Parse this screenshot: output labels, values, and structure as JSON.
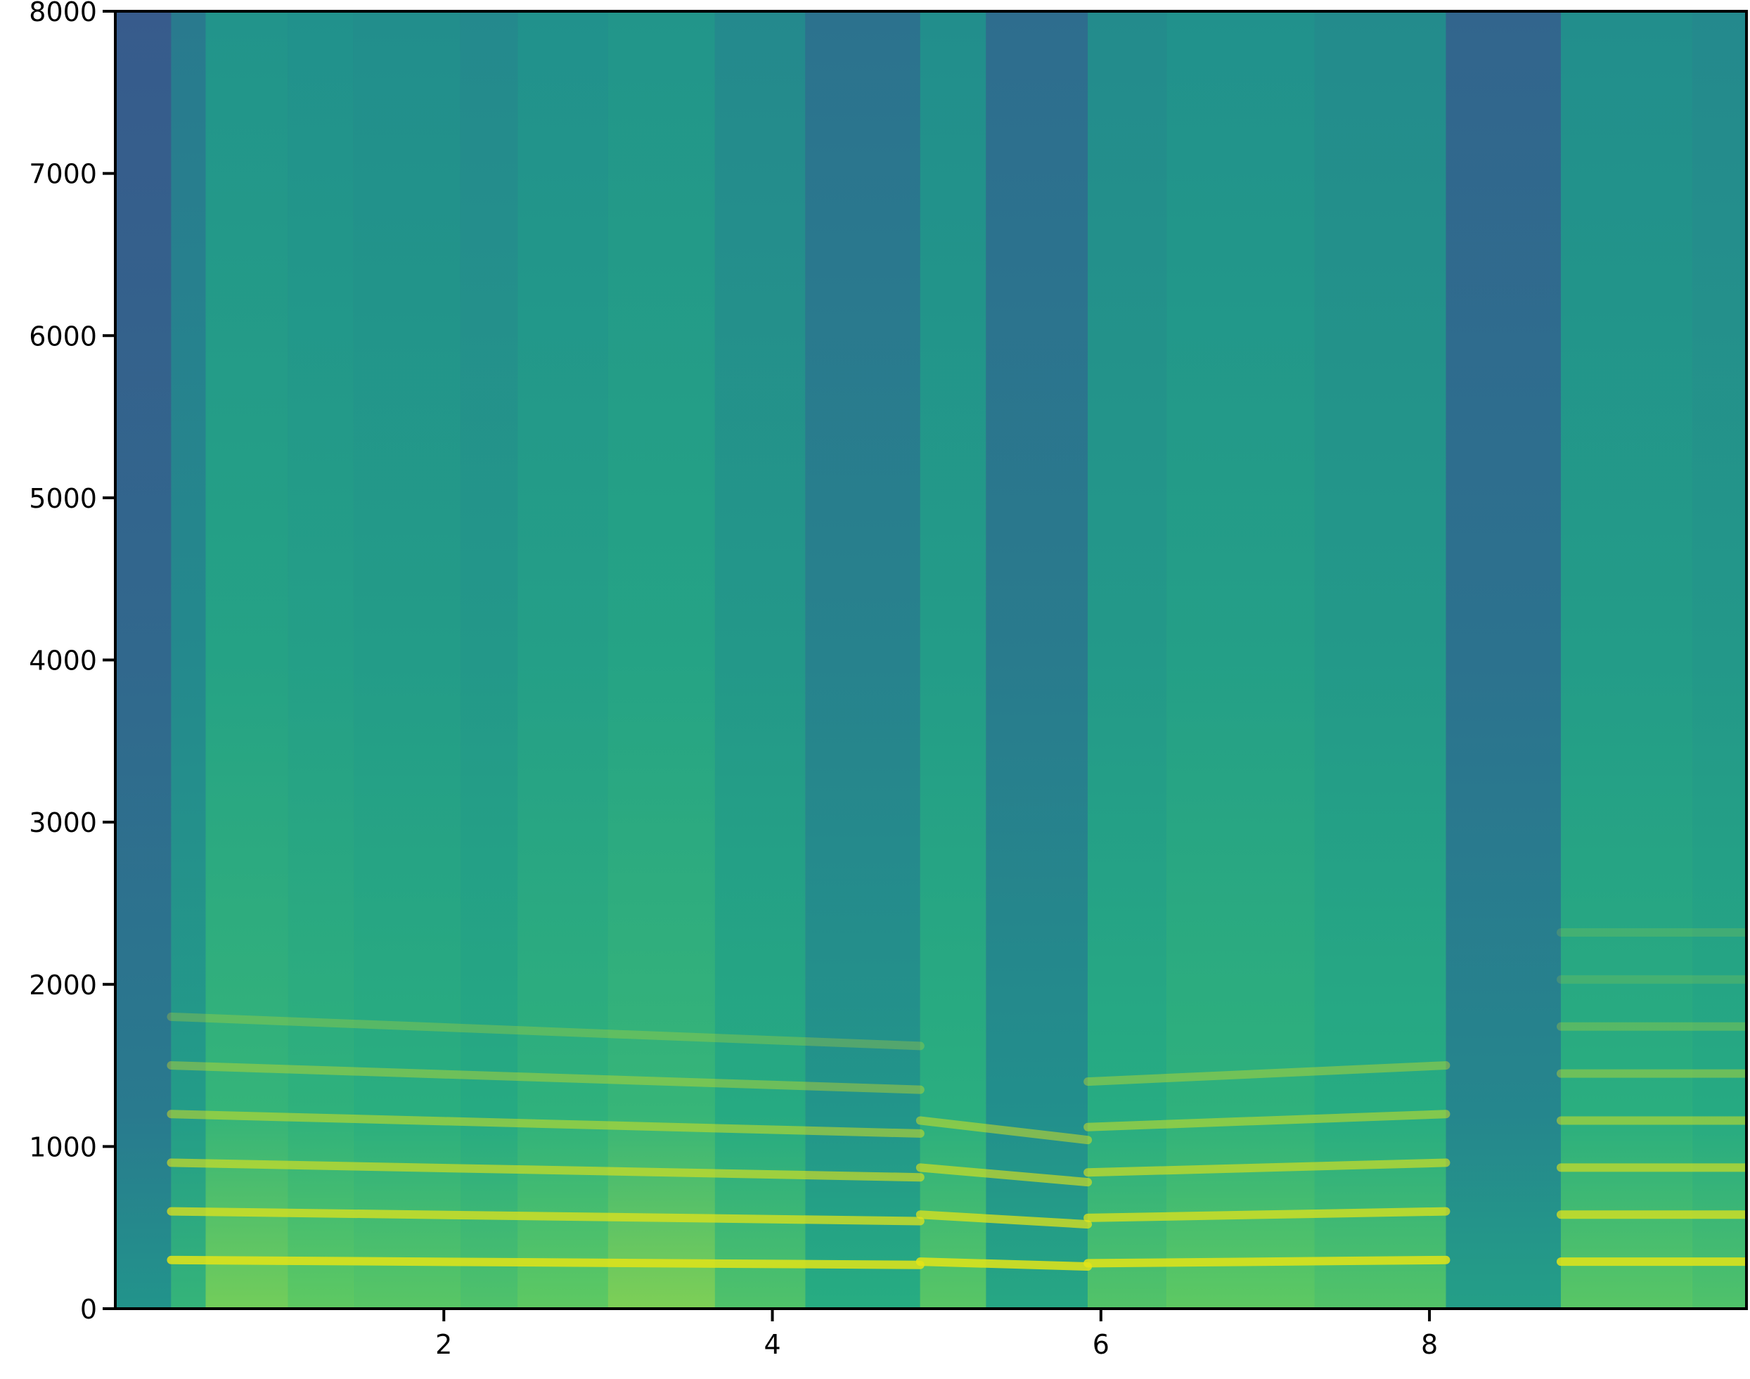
{
  "chart_data": {
    "type": "heatmap",
    "subtype": "spectrogram",
    "title": "",
    "xlabel": "",
    "ylabel": "",
    "xlim": [
      0,
      9.93
    ],
    "ylim": [
      0,
      8000
    ],
    "x_ticks": [
      2,
      4,
      6,
      8
    ],
    "x_tick_labels": [
      "2",
      "4",
      "6",
      "8"
    ],
    "y_ticks": [
      0,
      1000,
      2000,
      3000,
      4000,
      5000,
      6000,
      7000,
      8000
    ],
    "y_tick_labels": [
      "0",
      "1000",
      "2000",
      "3000",
      "4000",
      "5000",
      "6000",
      "7000",
      "8000"
    ],
    "colormap": "viridis",
    "grid": false,
    "legend": false,
    "segments": [
      {
        "start": 0.0,
        "end": 0.34,
        "energy": 0.22
      },
      {
        "start": 0.34,
        "end": 0.55,
        "energy": 0.45
      },
      {
        "start": 0.55,
        "end": 1.05,
        "energy": 0.62
      },
      {
        "start": 1.05,
        "end": 1.45,
        "energy": 0.6
      },
      {
        "start": 1.45,
        "end": 2.1,
        "energy": 0.58
      },
      {
        "start": 2.1,
        "end": 2.45,
        "energy": 0.55
      },
      {
        "start": 2.45,
        "end": 3.0,
        "energy": 0.6
      },
      {
        "start": 3.0,
        "end": 3.65,
        "energy": 0.63
      },
      {
        "start": 3.65,
        "end": 4.2,
        "energy": 0.55
      },
      {
        "start": 4.2,
        "end": 4.9,
        "energy": 0.4
      },
      {
        "start": 4.9,
        "end": 5.3,
        "energy": 0.58
      },
      {
        "start": 5.3,
        "end": 5.92,
        "energy": 0.36
      },
      {
        "start": 5.92,
        "end": 6.4,
        "energy": 0.56
      },
      {
        "start": 6.4,
        "end": 7.3,
        "energy": 0.6
      },
      {
        "start": 7.3,
        "end": 8.1,
        "energy": 0.56
      },
      {
        "start": 8.1,
        "end": 8.8,
        "energy": 0.3
      },
      {
        "start": 8.8,
        "end": 9.6,
        "energy": 0.58
      },
      {
        "start": 9.6,
        "end": 9.93,
        "energy": 0.55
      }
    ],
    "harmonic_bands": [
      {
        "start": 0.34,
        "end": 4.9,
        "f0_start": 300,
        "f0_end": 270,
        "count": 6
      },
      {
        "start": 4.9,
        "end": 5.92,
        "f0_start": 290,
        "f0_end": 260,
        "count": 4
      },
      {
        "start": 5.92,
        "end": 8.1,
        "f0_start": 280,
        "f0_end": 300,
        "count": 5
      },
      {
        "start": 8.8,
        "end": 9.93,
        "f0_start": 290,
        "f0_end": 290,
        "count": 8
      }
    ]
  }
}
